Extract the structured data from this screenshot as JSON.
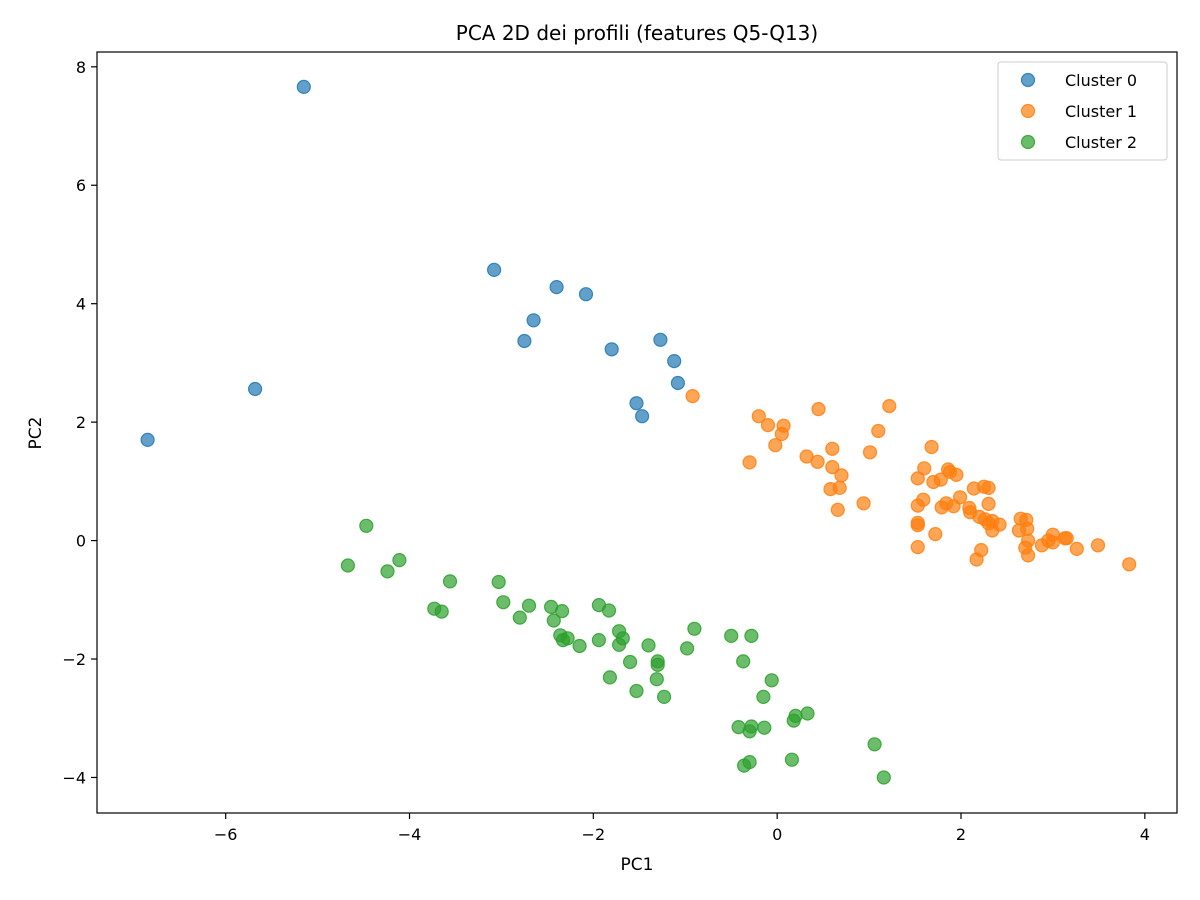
{
  "chart_data": {
    "type": "scatter",
    "title": "PCA 2D dei profili (features Q5-Q13)",
    "xlabel": "PC1",
    "ylabel": "PC2",
    "xlim": [
      -7.4,
      4.35
    ],
    "ylim": [
      -4.6,
      8.25
    ],
    "xticks": [
      -6,
      -4,
      -2,
      0,
      2,
      4
    ],
    "yticks": [
      -4,
      -2,
      0,
      2,
      4,
      6,
      8
    ],
    "grid": false,
    "legend_position": "top-right",
    "series": [
      {
        "name": "Cluster 0",
        "color": "#1f77b4",
        "points": [
          [
            -6.85,
            1.7
          ],
          [
            -5.68,
            2.56
          ],
          [
            -5.15,
            7.66
          ],
          [
            -3.08,
            4.57
          ],
          [
            -2.4,
            4.28
          ],
          [
            -2.08,
            4.16
          ],
          [
            -2.65,
            3.72
          ],
          [
            -2.75,
            3.37
          ],
          [
            -1.8,
            3.23
          ],
          [
            -1.27,
            3.39
          ],
          [
            -1.12,
            3.03
          ],
          [
            -1.08,
            2.66
          ],
          [
            -1.53,
            2.32
          ],
          [
            -1.47,
            2.1
          ]
        ]
      },
      {
        "name": "Cluster 1",
        "color": "#ff7f0e",
        "points": [
          [
            -0.92,
            2.44
          ],
          [
            -0.2,
            2.1
          ],
          [
            -0.1,
            1.95
          ],
          [
            0.07,
            1.94
          ],
          [
            0.05,
            1.8
          ],
          [
            -0.02,
            1.61
          ],
          [
            -0.3,
            1.32
          ],
          [
            0.45,
            2.22
          ],
          [
            1.22,
            2.27
          ],
          [
            1.1,
            1.85
          ],
          [
            0.6,
            1.55
          ],
          [
            0.32,
            1.42
          ],
          [
            0.44,
            1.33
          ],
          [
            0.6,
            1.24
          ],
          [
            0.7,
            1.1
          ],
          [
            0.58,
            0.87
          ],
          [
            0.68,
            0.89
          ],
          [
            0.66,
            0.52
          ],
          [
            1.01,
            1.49
          ],
          [
            0.94,
            0.63
          ],
          [
            1.68,
            1.58
          ],
          [
            1.6,
            1.22
          ],
          [
            1.53,
            1.05
          ],
          [
            1.7,
            0.99
          ],
          [
            1.78,
            1.03
          ],
          [
            1.86,
            1.2
          ],
          [
            1.88,
            1.16
          ],
          [
            1.95,
            1.11
          ],
          [
            1.59,
            0.69
          ],
          [
            1.53,
            0.59
          ],
          [
            1.53,
            0.3
          ],
          [
            1.53,
            0.26
          ],
          [
            1.53,
            -0.11
          ],
          [
            1.72,
            0.11
          ],
          [
            1.79,
            0.56
          ],
          [
            1.84,
            0.63
          ],
          [
            1.92,
            0.58
          ],
          [
            1.99,
            0.73
          ],
          [
            2.09,
            0.55
          ],
          [
            2.1,
            0.48
          ],
          [
            2.14,
            0.88
          ],
          [
            2.25,
            0.91
          ],
          [
            2.3,
            0.89
          ],
          [
            2.3,
            0.62
          ],
          [
            2.2,
            0.4
          ],
          [
            2.26,
            0.36
          ],
          [
            2.34,
            0.33
          ],
          [
            2.3,
            0.29
          ],
          [
            2.42,
            0.27
          ],
          [
            2.34,
            0.17
          ],
          [
            2.17,
            -0.32
          ],
          [
            2.22,
            -0.16
          ],
          [
            2.65,
            0.37
          ],
          [
            2.71,
            0.35
          ],
          [
            2.72,
            0.2
          ],
          [
            2.63,
            0.17
          ],
          [
            2.73,
            0.0
          ],
          [
            2.7,
            -0.12
          ],
          [
            2.73,
            -0.25
          ],
          [
            2.88,
            -0.08
          ],
          [
            2.95,
            0.0
          ],
          [
            3.0,
            0.1
          ],
          [
            3.0,
            -0.03
          ],
          [
            3.13,
            0.04
          ],
          [
            3.15,
            0.04
          ],
          [
            3.26,
            -0.14
          ],
          [
            3.49,
            -0.08
          ],
          [
            3.83,
            -0.4
          ]
        ]
      },
      {
        "name": "Cluster 2",
        "color": "#2ca02c",
        "points": [
          [
            -4.47,
            0.25
          ],
          [
            -4.67,
            -0.42
          ],
          [
            -4.24,
            -0.52
          ],
          [
            -4.11,
            -0.33
          ],
          [
            -3.56,
            -0.69
          ],
          [
            -3.73,
            -1.15
          ],
          [
            -3.65,
            -1.2
          ],
          [
            -3.03,
            -0.7
          ],
          [
            -2.98,
            -1.04
          ],
          [
            -2.7,
            -1.1
          ],
          [
            -2.8,
            -1.3
          ],
          [
            -2.46,
            -1.12
          ],
          [
            -2.34,
            -1.19
          ],
          [
            -2.43,
            -1.35
          ],
          [
            -2.36,
            -1.6
          ],
          [
            -2.33,
            -1.68
          ],
          [
            -2.28,
            -1.65
          ],
          [
            -2.15,
            -1.78
          ],
          [
            -1.94,
            -1.09
          ],
          [
            -1.83,
            -1.18
          ],
          [
            -1.94,
            -1.68
          ],
          [
            -1.72,
            -1.53
          ],
          [
            -1.68,
            -1.65
          ],
          [
            -1.72,
            -1.76
          ],
          [
            -1.82,
            -2.31
          ],
          [
            -1.6,
            -2.05
          ],
          [
            -1.53,
            -2.54
          ],
          [
            -1.4,
            -1.77
          ],
          [
            -1.3,
            -2.04
          ],
          [
            -1.3,
            -2.1
          ],
          [
            -1.31,
            -2.34
          ],
          [
            -1.23,
            -2.64
          ],
          [
            -0.98,
            -1.82
          ],
          [
            -0.9,
            -1.49
          ],
          [
            -0.5,
            -1.61
          ],
          [
            -0.28,
            -1.61
          ],
          [
            -0.37,
            -2.04
          ],
          [
            -0.06,
            -2.36
          ],
          [
            -0.15,
            -2.64
          ],
          [
            0.2,
            -2.96
          ],
          [
            0.33,
            -2.92
          ],
          [
            0.18,
            -3.04
          ],
          [
            -0.42,
            -3.15
          ],
          [
            -0.28,
            -3.14
          ],
          [
            -0.3,
            -3.22
          ],
          [
            -0.14,
            -3.16
          ],
          [
            -0.36,
            -3.8
          ],
          [
            -0.3,
            -3.74
          ],
          [
            0.16,
            -3.7
          ],
          [
            1.06,
            -3.44
          ],
          [
            1.16,
            -4.0
          ]
        ]
      }
    ]
  }
}
